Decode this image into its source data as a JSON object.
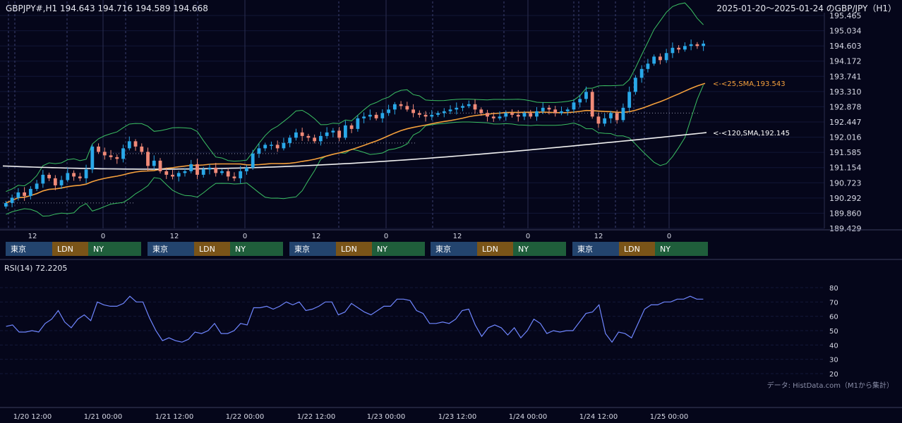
{
  "header": {
    "symbol_ohlc": "GBPJPY#,H1 194.643 194.716 194.589 194.668",
    "range_title": "2025-01-20～2025-01-24 のGBP/JPY（H1）"
  },
  "footer": {
    "source_note": "データ: HistData.com（M1から集計）"
  },
  "colors": {
    "background": "#05061a",
    "bull": "#29a8e8",
    "bear": "#f08a78",
    "sma25": "#f5a03c",
    "sma120": "#f0f0f0",
    "bollinger": "#3bbf63",
    "rsi": "#6f86ff",
    "session_tokyo": "#23446e",
    "session_london": "#7a5418",
    "session_ny": "#1f5e3b"
  },
  "chart_data": [
    {
      "type": "candlestick",
      "title": "GBPJPY#,H1",
      "ylim": [
        189.429,
        195.465
      ],
      "y_ticks": [
        "195.465",
        "195.034",
        "194.603",
        "194.172",
        "193.741",
        "193.310",
        "192.878",
        "192.447",
        "192.016",
        "191.585",
        "191.154",
        "190.723",
        "190.292",
        "189.860",
        "189.429"
      ],
      "hour_ticks": [
        "12",
        "0",
        "12",
        "0",
        "12",
        "0",
        "12",
        "0",
        "12",
        "0"
      ],
      "sessions": [
        "東京",
        "LDN",
        "NY"
      ],
      "overlays": [
        {
          "name": "SMA25",
          "label": "<-<25,SMA,193.543",
          "value": 193.543
        },
        {
          "name": "SMA120",
          "label": "<-<120,SMA,192.145",
          "value": 192.145
        },
        {
          "name": "Bollinger Bands"
        }
      ],
      "last": {
        "open": 194.643,
        "high": 194.716,
        "low": 194.589,
        "close": 194.668
      },
      "close_series": [
        190.15,
        190.3,
        190.45,
        190.35,
        190.55,
        190.7,
        190.95,
        190.85,
        190.65,
        190.8,
        191.0,
        190.9,
        190.85,
        191.1,
        191.75,
        191.6,
        191.5,
        191.45,
        191.4,
        191.7,
        191.9,
        191.75,
        191.6,
        191.2,
        191.35,
        191.05,
        190.95,
        190.9,
        191.0,
        191.05,
        191.25,
        190.95,
        191.1,
        191.15,
        191.0,
        191.05,
        190.9,
        190.85,
        191.05,
        191.15,
        191.55,
        191.7,
        191.8,
        191.8,
        191.7,
        191.85,
        192.0,
        192.15,
        192.05,
        192.0,
        191.9,
        192.05,
        192.15,
        192.2,
        192.0,
        192.35,
        192.25,
        192.55,
        192.6,
        192.65,
        192.55,
        192.7,
        192.8,
        192.95,
        192.9,
        192.8,
        192.7,
        192.65,
        192.6,
        192.65,
        192.7,
        192.75,
        192.8,
        192.85,
        192.9,
        192.95,
        192.8,
        192.7,
        192.6,
        192.55,
        192.6,
        192.7,
        192.65,
        192.6,
        192.7,
        192.6,
        192.75,
        192.85,
        192.8,
        192.7,
        192.75,
        192.8,
        193.0,
        193.1,
        193.3,
        192.6,
        192.4,
        192.55,
        192.7,
        192.5,
        192.85,
        193.3,
        193.7,
        193.95,
        194.1,
        194.3,
        194.2,
        194.4,
        194.55,
        194.5,
        194.6,
        194.65,
        194.6,
        194.668
      ],
      "sma25_end": 193.543,
      "sma120_start": 191.2,
      "sma120_end": 192.145
    },
    {
      "type": "line",
      "title": "RSI(14) 72.2205",
      "ylim": [
        20,
        80
      ],
      "y_ticks": [
        "80",
        "70",
        "60",
        "50",
        "40",
        "30",
        "20"
      ],
      "x_ticks": [
        "1/20 12:00",
        "1/21 00:00",
        "1/21 12:00",
        "1/22 00:00",
        "1/22 12:00",
        "1/23 00:00",
        "1/23 12:00",
        "1/24 00:00",
        "1/24 12:00",
        "1/25 00:00"
      ],
      "values": [
        53,
        54,
        49,
        49,
        50,
        49,
        55,
        58,
        64,
        56,
        52,
        58,
        61,
        57,
        70,
        68,
        67,
        67,
        69,
        74,
        70,
        70,
        59,
        50,
        43,
        45,
        43,
        42,
        44,
        49,
        48,
        50,
        55,
        48,
        48,
        50,
        55,
        54,
        66,
        66,
        67,
        65,
        67,
        70,
        68,
        70,
        64,
        65,
        67,
        70,
        70,
        61,
        63,
        69,
        66,
        63,
        61,
        64,
        67,
        67,
        72,
        72,
        71,
        64,
        62,
        55,
        55,
        56,
        55,
        58,
        64,
        65,
        54,
        46,
        52,
        54,
        52,
        47,
        52,
        45,
        50,
        58,
        55,
        48,
        50,
        49,
        50,
        50,
        56,
        62,
        63,
        68,
        48,
        42,
        49,
        48,
        45,
        55,
        65,
        68,
        68,
        70,
        70,
        72,
        72,
        74,
        72,
        72
      ]
    }
  ]
}
